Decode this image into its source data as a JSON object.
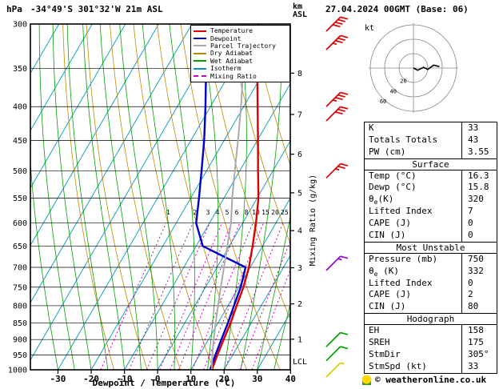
{
  "header": {
    "pressure_unit": "hPa",
    "station_title": "-34°49'S 301°32'W 21m ASL",
    "datetime": "27.04.2024 00GMT (Base: 06)",
    "km_unit_line1": "km",
    "km_unit_line2": "ASL"
  },
  "legend": {
    "items": [
      {
        "label": "Temperature",
        "color": "#dd0000",
        "dash": false
      },
      {
        "label": "Dewpoint",
        "color": "#0000cc",
        "dash": false
      },
      {
        "label": "Parcel Trajectory",
        "color": "#aaaaaa",
        "dash": false
      },
      {
        "label": "Dry Adiabat",
        "color": "#c08a00",
        "dash": false
      },
      {
        "label": "Wet Adiabat",
        "color": "#00a000",
        "dash": false
      },
      {
        "label": "Isotherm",
        "color": "#0099bb",
        "dash": false
      },
      {
        "label": "Mixing Ratio",
        "color": "#cc00cc",
        "dash": true
      }
    ]
  },
  "axes": {
    "xlabel": "Dewpoint / Temperature (°C)",
    "x_ticks": [
      -30,
      -20,
      -10,
      0,
      10,
      20,
      30,
      40
    ],
    "pressure_ticks": [
      300,
      350,
      400,
      450,
      500,
      550,
      600,
      650,
      700,
      750,
      800,
      850,
      900,
      950,
      1000
    ],
    "km_ticks": [
      1,
      2,
      3,
      4,
      5,
      6,
      7,
      8
    ],
    "mixing_ratio_axis_label": "Mixing Ratio (g/kg)",
    "lcl_label": "LCL"
  },
  "chart_data": {
    "type": "line",
    "title": "Skew-T log-P sounding",
    "x_axis": {
      "label": "Dewpoint / Temperature (°C)",
      "range": [
        -39,
        40
      ],
      "skewed": true
    },
    "y_axis": {
      "label": "hPa",
      "scale": "log",
      "range": [
        300,
        1000
      ]
    },
    "pressure_hPa": [
      1000,
      950,
      900,
      850,
      800,
      750,
      700,
      650,
      600,
      550,
      500,
      450,
      400,
      350,
      300
    ],
    "series": [
      {
        "name": "Temperature",
        "color": "#dd0000",
        "values_C": [
          16.3,
          15.4,
          14.6,
          13.8,
          12.6,
          11.4,
          9.6,
          7.0,
          4.0,
          0.4,
          -4.5,
          -9.8,
          -15.8,
          -22.6,
          -30.0
        ]
      },
      {
        "name": "Dewpoint",
        "color": "#0000cc",
        "values_C": [
          15.8,
          14.8,
          13.9,
          13.0,
          11.8,
          10.6,
          8.6,
          -8.0,
          -14.0,
          -17.5,
          -21.5,
          -26.0,
          -31.5,
          -38.0,
          -45.0
        ]
      },
      {
        "name": "Parcel Trajectory",
        "color": "#aaaaaa",
        "values_C": [
          16.3,
          13.9,
          11.6,
          9.3,
          7.0,
          4.6,
          2.1,
          -0.6,
          -3.5,
          -7.5,
          -11.5,
          -15.8,
          -20.8,
          -26.8,
          -34.0
        ]
      }
    ],
    "mixing_ratio_lines_g_kg": [
      1,
      2,
      3,
      4,
      5,
      6,
      8,
      10,
      15,
      20,
      25
    ],
    "wind_barbs": [
      {
        "pressure_hPa": 300,
        "speed_kt": 40,
        "color": "#dd0000"
      },
      {
        "pressure_hPa": 320,
        "speed_kt": 35,
        "color": "#dd0000"
      },
      {
        "pressure_hPa": 390,
        "speed_kt": 35,
        "color": "#dd0000"
      },
      {
        "pressure_hPa": 410,
        "speed_kt": 30,
        "color": "#dd0000"
      },
      {
        "pressure_hPa": 500,
        "speed_kt": 25,
        "color": "#dd0000"
      },
      {
        "pressure_hPa": 690,
        "speed_kt": 15,
        "color": "#9900cc"
      },
      {
        "pressure_hPa": 900,
        "speed_kt": 10,
        "color": "#00a000"
      },
      {
        "pressure_hPa": 945,
        "speed_kt": 10,
        "color": "#00a000"
      },
      {
        "pressure_hPa": 1000,
        "speed_kt": 5,
        "color": "#ddcc00"
      }
    ],
    "hodograph": {
      "unit_label": "kt",
      "rings_kt": [
        20,
        40,
        60
      ],
      "trace_uv_kt": [
        [
          0,
          0
        ],
        [
          6,
          -3
        ],
        [
          14,
          1
        ],
        [
          20,
          -2
        ],
        [
          28,
          4
        ],
        [
          36,
          2
        ]
      ]
    }
  },
  "table": {
    "sections": [
      {
        "rows": [
          [
            "K",
            "33"
          ],
          [
            "Totals Totals",
            "43"
          ],
          [
            "PW (cm)",
            "3.55"
          ]
        ]
      },
      {
        "header": "Surface",
        "rows": [
          [
            "Temp (°C)",
            "16.3"
          ],
          [
            "Dewp (°C)",
            "15.8"
          ],
          [
            "θe(K)",
            "320"
          ],
          [
            "Lifted Index",
            "7"
          ],
          [
            "CAPE (J)",
            "0"
          ],
          [
            "CIN (J)",
            "0"
          ]
        ]
      },
      {
        "header": "Most Unstable",
        "rows": [
          [
            "Pressure (mb)",
            "750"
          ],
          [
            "θe (K)",
            "332"
          ],
          [
            "Lifted Index",
            "0"
          ],
          [
            "CAPE (J)",
            "2"
          ],
          [
            "CIN (J)",
            "80"
          ]
        ]
      },
      {
        "header": "Hodograph",
        "rows": [
          [
            "EH",
            "158"
          ],
          [
            "SREH",
            "175"
          ],
          [
            "StmDir",
            "305°"
          ],
          [
            "StmSpd (kt)",
            "33"
          ]
        ]
      }
    ]
  },
  "footer": {
    "copyright": "© weatheronline.co.uk"
  }
}
